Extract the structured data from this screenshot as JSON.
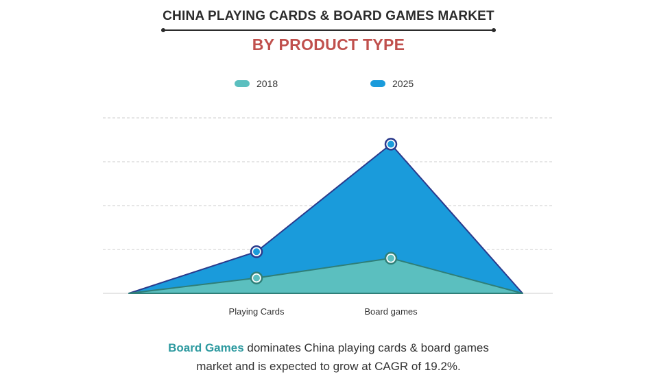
{
  "header": {
    "title": "CHINA PLAYING CARDS & BOARD GAMES MARKET",
    "subtitle": "BY PRODUCT TYPE"
  },
  "colors": {
    "series_2018": "#5bbfbf",
    "series_2025": "#1a9bdb",
    "outline": "#2a3a8c",
    "grid": "#cccccc",
    "highlight": "#2e9aa0",
    "subtitle": "#c0504d"
  },
  "chart_data": {
    "type": "area",
    "categories": [
      "Playing Cards",
      "Board games"
    ],
    "series": [
      {
        "name": "2018",
        "values": [
          0.7,
          1.6
        ]
      },
      {
        "name": "2025",
        "values": [
          1.9,
          6.8
        ]
      }
    ],
    "ylim": [
      0,
      8
    ],
    "grid": true,
    "legend_position": "top"
  },
  "caption": {
    "highlight": "Board Games",
    "line1_rest": " dominates China playing cards & board games",
    "line2": "market and is expected to grow at CAGR of 19.2%."
  }
}
